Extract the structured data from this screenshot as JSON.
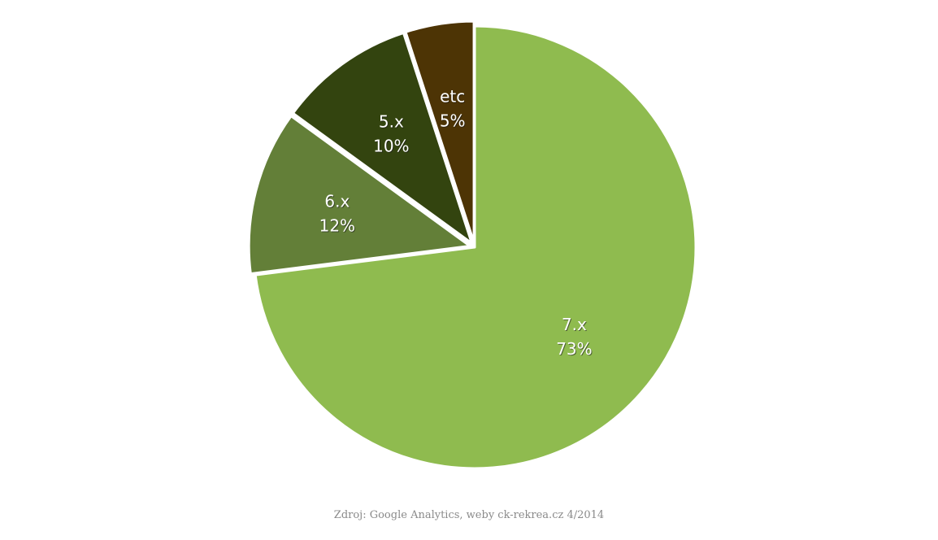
{
  "chart_data": {
    "type": "pie",
    "start_angle_deg": 0,
    "direction": "clockwise",
    "slices": [
      {
        "label": "7.x",
        "value": 73,
        "value_label": "73%",
        "color": "#8fbb4f"
      },
      {
        "label": "6.x",
        "value": 12,
        "value_label": "12%",
        "color": "#637f38"
      },
      {
        "label": "5.x",
        "value": 10,
        "value_label": "10%",
        "color": "#33440f"
      },
      {
        "label": "etc",
        "value": 5,
        "value_label": "5%",
        "color": "#4d3405"
      }
    ]
  },
  "source": {
    "text": "Zdroj: Google Analytics, weby ck-rekrea.cz 4/2014"
  }
}
